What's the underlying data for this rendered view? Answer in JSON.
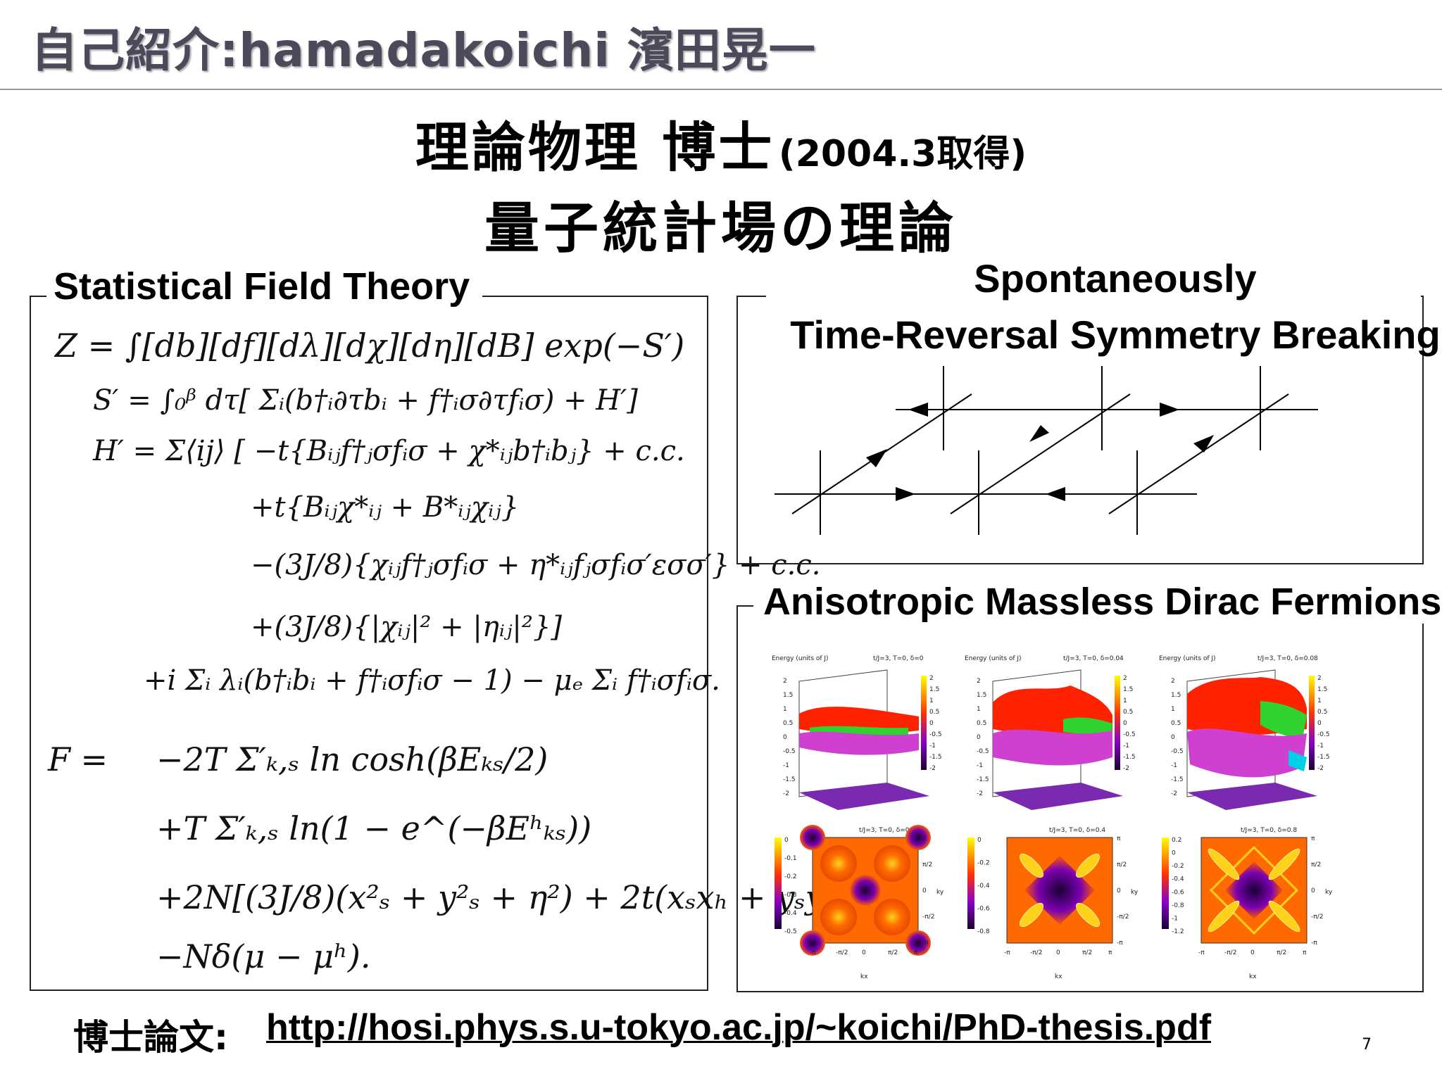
{
  "header": {
    "title": "自己紹介:hamadakoichi 濱田晃一"
  },
  "main": {
    "title_main": "理論物理 博士",
    "title_note": "(2004.3取得)",
    "subtitle": "量子統計場の理論"
  },
  "left_panel": {
    "label": "Statistical Field Theory",
    "equations": [
      "Z = ∫[db][df][dλ][dχ][dη][dB] exp(−S′)",
      "S′ = ∫₀ᵝ dτ[ Σᵢ(b†ᵢ∂τbᵢ + f†ᵢσ∂τfᵢσ) + H′]",
      "H′ = Σ⟨ij⟩ [   −t{Bᵢⱼf†ⱼσfᵢσ + χ*ᵢⱼb†ᵢbⱼ} + c.c.",
      "+t{Bᵢⱼχ*ᵢⱼ + B*ᵢⱼχᵢⱼ}",
      "−(3J/8){χᵢⱼf†ⱼσfᵢσ + η*ᵢⱼfⱼσfᵢσ′εσσ′} + c.c.",
      "+(3J/8){|χᵢⱼ|² + |ηᵢⱼ|²}]",
      "+i Σᵢ   λᵢ(b†ᵢbᵢ + f†ᵢσfᵢσ − 1) − μₑ Σᵢ f†ᵢσfᵢσ.",
      "F =",
      "−2T Σ′ₖ,ₛ ln cosh(βEₖₛ/2)",
      "+T Σ′ₖ,ₛ ln(1 − e^(−βEʰₖₛ))",
      "+2N[(3J/8)(x²ₛ + y²ₛ + η²) + 2t(xₛxₕ + yₛyₕ)]",
      "−Nδ(μ − μʰ)."
    ]
  },
  "top_right_panel": {
    "label_line1": "Spontaneously",
    "label_line2": "Time-Reversal Symmetry Breaking"
  },
  "bottom_right_panel": {
    "label": "Anisotropic Massless Dirac Fermions",
    "surface_plots": [
      {
        "ylabel": "Energy (units of J)",
        "title": "t/J=3, T=0, δ=0",
        "yticks": [
          "2",
          "1.5",
          "1",
          "0.5",
          "0",
          "-0.5",
          "-1",
          "-1.5",
          "-2"
        ],
        "cbticks": [
          "2",
          "1.5",
          "1",
          "0.5",
          "0",
          "-0.5",
          "-1",
          "-1.5",
          "-2"
        ]
      },
      {
        "ylabel": "Energy (units of J)",
        "title": "t/J=3, T=0, δ=0.04",
        "yticks": [
          "2",
          "1.5",
          "1",
          "0.5",
          "0",
          "-0.5",
          "-1",
          "-1.5",
          "-2"
        ],
        "cbticks": [
          "2",
          "1.5",
          "1",
          "0.5",
          "0",
          "-0.5",
          "-1",
          "-1.5",
          "-2"
        ]
      },
      {
        "ylabel": "Energy (units of J)",
        "title": "t/J=3, T=0, δ=0.08",
        "yticks": [
          "2",
          "1.5",
          "1",
          "0.5",
          "0",
          "-0.5",
          "-1",
          "-1.5",
          "-2"
        ],
        "cbticks": [
          "2",
          "1.5",
          "1",
          "0.5",
          "0",
          "-0.5",
          "-1",
          "-1.5",
          "-2"
        ]
      }
    ],
    "contour_plots": [
      {
        "title": "t/J=3, T=0, δ=0",
        "cbticks": [
          "0",
          "-0.1",
          "-0.2",
          "-0.3",
          "-0.4",
          "-0.5"
        ]
      },
      {
        "title": "t/J=3, T=0, δ=0.4",
        "cbticks": [
          "0",
          "-0.2",
          "-0.4",
          "-0.6",
          "-0.8"
        ]
      },
      {
        "title": "t/J=3, T=0, δ=0.8",
        "cbticks": [
          "0.2",
          "0",
          "-0.2",
          "-0.4",
          "-0.6",
          "-0.8",
          "-1",
          "-1.2"
        ]
      }
    ],
    "axis_ticks": [
      "-π",
      "-π/2",
      "0",
      "π/2",
      "π"
    ],
    "kx_label": "kx",
    "ky_label": "ky"
  },
  "footer": {
    "label": "博士論文:",
    "link": "http://hosi.phys.s.u-tokyo.ac.jp/~koichi/PhD-thesis.pdf",
    "page_number": "7"
  }
}
